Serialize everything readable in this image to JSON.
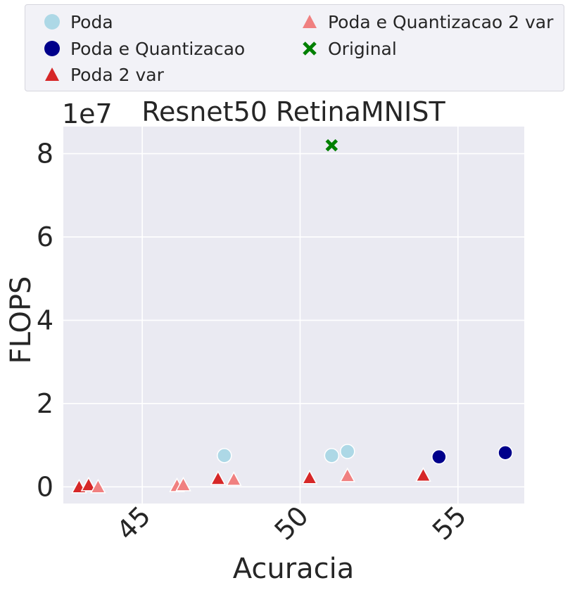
{
  "chart_data": {
    "type": "scatter",
    "title": "Resnet50 RetinaMNIST",
    "xlabel": "Acuracia",
    "ylabel": "FLOPS",
    "y_scale_label": "1e7",
    "xlim": [
      42.5,
      57.1
    ],
    "ylim": [
      -0.4,
      8.65
    ],
    "x_ticks": [
      45,
      50,
      55
    ],
    "x_tick_labels": [
      "45",
      "50",
      "55"
    ],
    "y_ticks": [
      0,
      2,
      4,
      6,
      8
    ],
    "y_tick_labels": [
      "0",
      "2",
      "4",
      "6",
      "8"
    ],
    "grid": true,
    "legend_position": "top",
    "series": [
      {
        "name": "Poda",
        "marker": "circle",
        "color": "#add8e6",
        "x": [
          47.6,
          51.0,
          51.5
        ],
        "y": [
          0.75,
          0.75,
          0.85
        ]
      },
      {
        "name": "Poda e Quantizacao",
        "marker": "circle",
        "color": "#00008b",
        "x": [
          54.4,
          56.5
        ],
        "y": [
          0.72,
          0.82
        ]
      },
      {
        "name": "Poda 2 var",
        "marker": "triangle",
        "color": "#d62728",
        "x": [
          43.0,
          43.3,
          47.4,
          50.3,
          53.9
        ],
        "y": [
          0.0,
          0.05,
          0.2,
          0.22,
          0.28
        ]
      },
      {
        "name": "Poda e Quantizacao 2 var",
        "marker": "triangle",
        "color": "#f08080",
        "x": [
          43.6,
          46.1,
          46.3,
          47.9,
          51.5
        ],
        "y": [
          0.0,
          0.03,
          0.05,
          0.18,
          0.27
        ]
      },
      {
        "name": "Original",
        "marker": "x",
        "color": "#008000",
        "x": [
          51.0
        ],
        "y": [
          8.2
        ]
      }
    ]
  }
}
